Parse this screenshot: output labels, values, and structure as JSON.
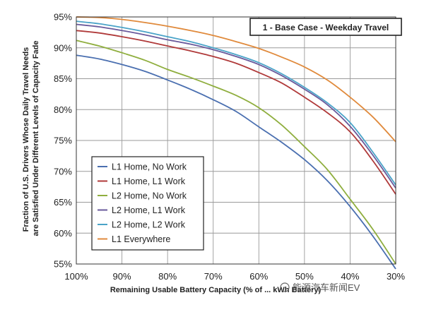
{
  "chart_data": {
    "type": "line",
    "title": "1 - Base Case - Weekday Travel",
    "xlabel": "Remaining Usable Battery Capacity (% of ... kWh Battery)",
    "ylabel": "Fraction of U.S. Drivers Whose Daily Travel Needs are Satisfied Under Different Levels of Capacity Fade",
    "x_tick_labels": [
      "100%",
      "90%",
      "80%",
      "70%",
      "60%",
      "50%",
      "40%",
      "30%"
    ],
    "y_tick_labels": [
      "95%",
      "90%",
      "85%",
      "80%",
      "75%",
      "70%",
      "65%",
      "60%",
      "55%"
    ],
    "xlim": [
      100,
      30
    ],
    "ylim": [
      55,
      95
    ],
    "x": [
      100,
      95,
      90,
      85,
      80,
      75,
      70,
      65,
      60,
      55,
      50,
      45,
      40,
      35,
      30
    ],
    "series": [
      {
        "name": "L1 Home, No Work",
        "color": "#4a6fb0",
        "values": [
          88.8,
          88.2,
          87.3,
          86.2,
          84.8,
          83.3,
          81.6,
          79.7,
          77.2,
          74.7,
          71.9,
          68.5,
          64.3,
          59.5,
          54.2
        ]
      },
      {
        "name": "L1 Home, L1 Work",
        "color": "#b03a3a",
        "values": [
          92.8,
          92.4,
          91.8,
          91.1,
          90.3,
          89.5,
          88.6,
          87.5,
          86.0,
          84.3,
          82.0,
          79.5,
          76.4,
          71.7,
          66.3
        ]
      },
      {
        "name": "L2 Home, No Work",
        "color": "#8fae3e",
        "values": [
          91.2,
          90.3,
          89.2,
          88.0,
          86.5,
          85.2,
          83.8,
          82.3,
          80.3,
          77.5,
          74.0,
          70.3,
          65.5,
          60.6,
          55.0
        ]
      },
      {
        "name": "L2 Home, L1 Work",
        "color": "#6a5a9c",
        "values": [
          93.8,
          93.4,
          92.8,
          92.1,
          91.3,
          90.6,
          89.7,
          88.6,
          87.3,
          85.5,
          83.3,
          80.8,
          77.3,
          72.6,
          67.3
        ]
      },
      {
        "name": "L2 Home, L2 Work",
        "color": "#4aa3c8",
        "values": [
          94.3,
          93.9,
          93.3,
          92.6,
          91.8,
          91.0,
          90.0,
          88.9,
          87.6,
          85.8,
          83.6,
          81.1,
          77.9,
          73.1,
          67.8
        ]
      },
      {
        "name": "L1 Everywhere",
        "color": "#e08a3c",
        "values": [
          95.0,
          94.9,
          94.6,
          94.1,
          93.5,
          92.8,
          92.0,
          91.0,
          89.9,
          88.5,
          86.9,
          84.8,
          82.0,
          78.8,
          74.8
        ]
      }
    ],
    "grid": true,
    "legend_position": "bottom-left"
  },
  "watermark": {
    "text": "能源汽车新闻EV"
  }
}
